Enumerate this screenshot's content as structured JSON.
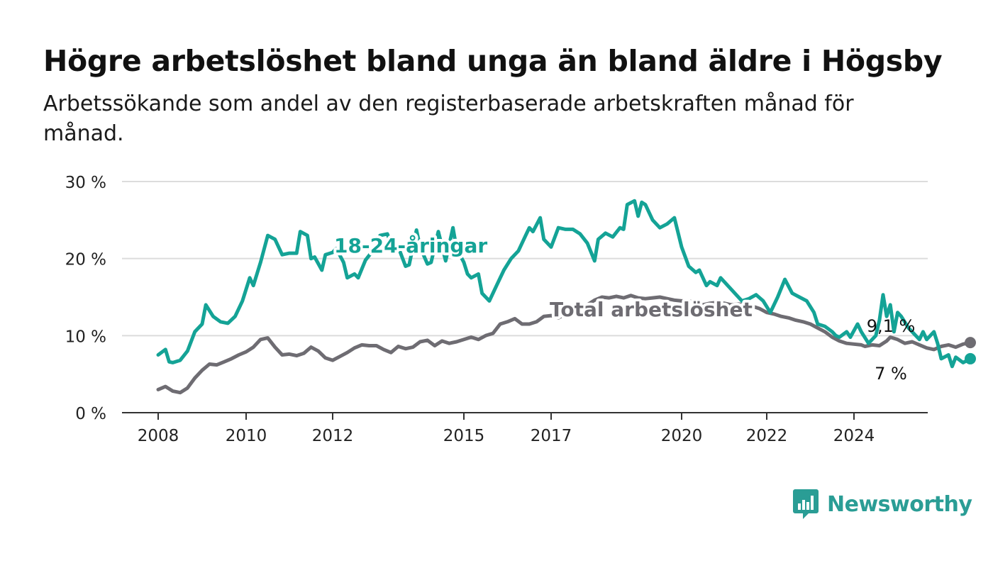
{
  "title": "Högre arbetslöshet bland unga än bland äldre i Högsby",
  "subtitle": "Arbetssökande som andel av den registerbaserade arbetskraften månad för månad.",
  "brand": "Newsworthy",
  "chart_data": {
    "type": "line",
    "title": "Högre arbetslöshet bland unga än bland äldre i Högsby",
    "subtitle": "Arbetssökande som andel av den registerbaserade arbetskraften månad för månad.",
    "xlabel": "",
    "ylabel": "",
    "ylim": [
      0,
      30
    ],
    "y_ticks": [
      0,
      10,
      20,
      30
    ],
    "y_tick_labels": [
      "0 %",
      "10 %",
      "20 %",
      "30 %"
    ],
    "x_tick_years": [
      2008,
      2010,
      2012,
      2015,
      2017,
      2020,
      2022,
      2024
    ],
    "x_tick_labels": [
      "2008",
      "2010",
      "2012",
      "2015",
      "2017",
      "2020",
      "2022",
      "2024"
    ],
    "grid": "horizontal",
    "series": [
      {
        "name": "18-24-åringar",
        "color": "#14a396",
        "end_label": "7 %",
        "points": [
          [
            "2008-01",
            7.5
          ],
          [
            "2008-03",
            8.2
          ],
          [
            "2008-04",
            6.6
          ],
          [
            "2008-05",
            6.5
          ],
          [
            "2008-07",
            6.8
          ],
          [
            "2008-09",
            8.0
          ],
          [
            "2008-11",
            10.5
          ],
          [
            "2009-01",
            11.5
          ],
          [
            "2009-02",
            14.0
          ],
          [
            "2009-04",
            12.5
          ],
          [
            "2009-06",
            11.8
          ],
          [
            "2009-08",
            11.6
          ],
          [
            "2009-10",
            12.5
          ],
          [
            "2009-12",
            14.5
          ],
          [
            "2010-02",
            17.5
          ],
          [
            "2010-03",
            16.5
          ],
          [
            "2010-05",
            19.5
          ],
          [
            "2010-07",
            23.0
          ],
          [
            "2010-09",
            22.5
          ],
          [
            "2010-11",
            20.5
          ],
          [
            "2011-01",
            20.7
          ],
          [
            "2011-03",
            20.7
          ],
          [
            "2011-04",
            23.5
          ],
          [
            "2011-06",
            23.0
          ],
          [
            "2011-07",
            20.0
          ],
          [
            "2011-08",
            20.2
          ],
          [
            "2011-10",
            18.5
          ],
          [
            "2011-11",
            20.5
          ],
          [
            "2012-01",
            20.8
          ],
          [
            "2012-02",
            21.3
          ],
          [
            "2012-04",
            19.5
          ],
          [
            "2012-05",
            17.5
          ],
          [
            "2012-07",
            18.0
          ],
          [
            "2012-08",
            17.5
          ],
          [
            "2012-10",
            19.8
          ],
          [
            "2012-12",
            21.0
          ],
          [
            "2013-02",
            23.0
          ],
          [
            "2013-04",
            23.2
          ],
          [
            "2013-05",
            22.0
          ],
          [
            "2013-07",
            21.5
          ],
          [
            "2013-09",
            19.0
          ],
          [
            "2013-10",
            19.2
          ],
          [
            "2013-12",
            23.7
          ],
          [
            "2014-01",
            21.5
          ],
          [
            "2014-03",
            19.3
          ],
          [
            "2014-04",
            19.5
          ],
          [
            "2014-06",
            23.5
          ],
          [
            "2014-08",
            19.7
          ],
          [
            "2014-10",
            24.0
          ],
          [
            "2014-11",
            21.3
          ],
          [
            "2015-01",
            19.5
          ],
          [
            "2015-02",
            18.0
          ],
          [
            "2015-03",
            17.5
          ],
          [
            "2015-05",
            18.0
          ],
          [
            "2015-06",
            15.5
          ],
          [
            "2015-08",
            14.5
          ],
          [
            "2015-10",
            16.5
          ],
          [
            "2015-12",
            18.5
          ],
          [
            "2016-02",
            20.0
          ],
          [
            "2016-04",
            21.0
          ],
          [
            "2016-06",
            23.0
          ],
          [
            "2016-07",
            24.0
          ],
          [
            "2016-08",
            23.5
          ],
          [
            "2016-10",
            25.3
          ],
          [
            "2016-11",
            22.5
          ],
          [
            "2017-01",
            21.5
          ],
          [
            "2017-03",
            24.0
          ],
          [
            "2017-05",
            23.8
          ],
          [
            "2017-07",
            23.8
          ],
          [
            "2017-09",
            23.2
          ],
          [
            "2017-11",
            22.0
          ],
          [
            "2018-01",
            19.7
          ],
          [
            "2018-02",
            22.5
          ],
          [
            "2018-04",
            23.3
          ],
          [
            "2018-06",
            22.8
          ],
          [
            "2018-08",
            24.0
          ],
          [
            "2018-09",
            23.8
          ],
          [
            "2018-10",
            27.0
          ],
          [
            "2018-12",
            27.5
          ],
          [
            "2019-01",
            25.5
          ],
          [
            "2019-02",
            27.3
          ],
          [
            "2019-03",
            27.0
          ],
          [
            "2019-05",
            25.0
          ],
          [
            "2019-07",
            24.0
          ],
          [
            "2019-09",
            24.5
          ],
          [
            "2019-11",
            25.3
          ],
          [
            "2020-01",
            21.5
          ],
          [
            "2020-03",
            19.0
          ],
          [
            "2020-05",
            18.2
          ],
          [
            "2020-06",
            18.5
          ],
          [
            "2020-08",
            16.5
          ],
          [
            "2020-09",
            17.0
          ],
          [
            "2020-11",
            16.5
          ],
          [
            "2020-12",
            17.5
          ],
          [
            "2021-02",
            16.5
          ],
          [
            "2021-04",
            15.5
          ],
          [
            "2021-06",
            14.5
          ],
          [
            "2021-08",
            14.8
          ],
          [
            "2021-10",
            15.3
          ],
          [
            "2021-12",
            14.5
          ],
          [
            "2022-02",
            13.0
          ],
          [
            "2022-04",
            15.0
          ],
          [
            "2022-06",
            17.3
          ],
          [
            "2022-08",
            15.5
          ],
          [
            "2022-10",
            15.0
          ],
          [
            "2022-12",
            14.5
          ],
          [
            "2023-02",
            13.0
          ],
          [
            "2023-03",
            11.5
          ],
          [
            "2023-05",
            11.2
          ],
          [
            "2023-07",
            10.5
          ],
          [
            "2023-08",
            10.0
          ],
          [
            "2023-09",
            9.8
          ],
          [
            "2023-11",
            10.5
          ],
          [
            "2023-12",
            9.8
          ],
          [
            "2024-02",
            11.5
          ],
          [
            "2024-03",
            10.5
          ],
          [
            "2024-05",
            9.0
          ],
          [
            "2024-07",
            10.0
          ],
          [
            "2024-08",
            12.0
          ],
          [
            "2024-09",
            15.3
          ],
          [
            "2024-10",
            12.5
          ],
          [
            "2024-11",
            14.0
          ],
          [
            "2024-12",
            10.5
          ],
          [
            "2025-01",
            13.0
          ],
          [
            "2025-02",
            12.5
          ],
          [
            "2025-04",
            11.0
          ],
          [
            "2025-06",
            10.0
          ],
          [
            "2025-07",
            9.5
          ],
          [
            "2025-08",
            10.5
          ],
          [
            "2025-09",
            9.5
          ],
          [
            "2025-11",
            10.5
          ],
          [
            "2025-12",
            9.0
          ],
          [
            "2026-01",
            7.0
          ],
          [
            "2026-03",
            7.5
          ],
          [
            "2026-04",
            6.0
          ],
          [
            "2026-05",
            7.2
          ],
          [
            "2026-07",
            6.5
          ],
          [
            "2026-09",
            7.0
          ]
        ]
      },
      {
        "name": "Total arbetslöshet",
        "color": "#6e6c72",
        "end_label": "9,1 %",
        "points": [
          [
            "2008-01",
            3.0
          ],
          [
            "2008-03",
            3.4
          ],
          [
            "2008-05",
            2.8
          ],
          [
            "2008-07",
            2.6
          ],
          [
            "2008-09",
            3.2
          ],
          [
            "2008-11",
            4.5
          ],
          [
            "2009-01",
            5.5
          ],
          [
            "2009-03",
            6.3
          ],
          [
            "2009-05",
            6.2
          ],
          [
            "2009-07",
            6.6
          ],
          [
            "2009-09",
            7.0
          ],
          [
            "2009-11",
            7.5
          ],
          [
            "2010-01",
            7.9
          ],
          [
            "2010-03",
            8.5
          ],
          [
            "2010-05",
            9.5
          ],
          [
            "2010-07",
            9.7
          ],
          [
            "2010-09",
            8.5
          ],
          [
            "2010-11",
            7.5
          ],
          [
            "2011-01",
            7.6
          ],
          [
            "2011-03",
            7.4
          ],
          [
            "2011-05",
            7.7
          ],
          [
            "2011-07",
            8.5
          ],
          [
            "2011-09",
            8.0
          ],
          [
            "2011-11",
            7.1
          ],
          [
            "2012-01",
            6.8
          ],
          [
            "2012-03",
            7.3
          ],
          [
            "2012-05",
            7.8
          ],
          [
            "2012-07",
            8.4
          ],
          [
            "2012-09",
            8.8
          ],
          [
            "2012-11",
            8.7
          ],
          [
            "2013-01",
            8.7
          ],
          [
            "2013-03",
            8.2
          ],
          [
            "2013-05",
            7.8
          ],
          [
            "2013-07",
            8.6
          ],
          [
            "2013-09",
            8.3
          ],
          [
            "2013-11",
            8.5
          ],
          [
            "2014-01",
            9.2
          ],
          [
            "2014-03",
            9.4
          ],
          [
            "2014-05",
            8.7
          ],
          [
            "2014-07",
            9.3
          ],
          [
            "2014-09",
            9.0
          ],
          [
            "2014-11",
            9.2
          ],
          [
            "2015-01",
            9.5
          ],
          [
            "2015-03",
            9.8
          ],
          [
            "2015-05",
            9.5
          ],
          [
            "2015-07",
            10.0
          ],
          [
            "2015-09",
            10.3
          ],
          [
            "2015-11",
            11.5
          ],
          [
            "2016-01",
            11.8
          ],
          [
            "2016-03",
            12.2
          ],
          [
            "2016-05",
            11.5
          ],
          [
            "2016-07",
            11.5
          ],
          [
            "2016-09",
            11.8
          ],
          [
            "2016-11",
            12.5
          ],
          [
            "2017-01",
            12.6
          ],
          [
            "2017-03",
            12.3
          ],
          [
            "2017-05",
            12.8
          ],
          [
            "2017-07",
            12.9
          ],
          [
            "2017-09",
            13.3
          ],
          [
            "2017-11",
            14.0
          ],
          [
            "2018-01",
            14.6
          ],
          [
            "2018-03",
            15.0
          ],
          [
            "2018-05",
            14.9
          ],
          [
            "2018-07",
            15.1
          ],
          [
            "2018-09",
            14.9
          ],
          [
            "2018-11",
            15.2
          ],
          [
            "2019-01",
            14.9
          ],
          [
            "2019-03",
            14.8
          ],
          [
            "2019-05",
            14.9
          ],
          [
            "2019-07",
            15.0
          ],
          [
            "2019-09",
            14.8
          ],
          [
            "2019-11",
            14.6
          ],
          [
            "2020-01",
            14.5
          ],
          [
            "2020-03",
            14.5
          ],
          [
            "2020-05",
            14.3
          ],
          [
            "2020-07",
            14.0
          ],
          [
            "2020-09",
            14.2
          ],
          [
            "2020-11",
            14.3
          ],
          [
            "2021-01",
            14.2
          ],
          [
            "2021-03",
            14.0
          ],
          [
            "2021-05",
            14.1
          ],
          [
            "2021-07",
            14.0
          ],
          [
            "2021-09",
            13.8
          ],
          [
            "2021-11",
            13.5
          ],
          [
            "2022-01",
            13.0
          ],
          [
            "2022-03",
            12.8
          ],
          [
            "2022-05",
            12.5
          ],
          [
            "2022-07",
            12.3
          ],
          [
            "2022-09",
            12.0
          ],
          [
            "2022-11",
            11.8
          ],
          [
            "2023-01",
            11.5
          ],
          [
            "2023-03",
            11.0
          ],
          [
            "2023-05",
            10.5
          ],
          [
            "2023-07",
            9.8
          ],
          [
            "2023-09",
            9.3
          ],
          [
            "2023-11",
            9.0
          ],
          [
            "2024-01",
            8.9
          ],
          [
            "2024-03",
            8.8
          ],
          [
            "2024-04",
            8.6
          ],
          [
            "2024-06",
            8.8
          ],
          [
            "2024-08",
            8.7
          ],
          [
            "2024-10",
            9.3
          ],
          [
            "2024-11",
            9.8
          ],
          [
            "2025-01",
            9.5
          ],
          [
            "2025-03",
            9.0
          ],
          [
            "2025-05",
            9.2
          ],
          [
            "2025-07",
            8.8
          ],
          [
            "2025-09",
            8.4
          ],
          [
            "2025-11",
            8.2
          ],
          [
            "2026-01",
            8.6
          ],
          [
            "2026-03",
            8.8
          ],
          [
            "2026-05",
            8.5
          ],
          [
            "2026-07",
            8.9
          ],
          [
            "2026-09",
            9.1
          ]
        ]
      }
    ]
  }
}
